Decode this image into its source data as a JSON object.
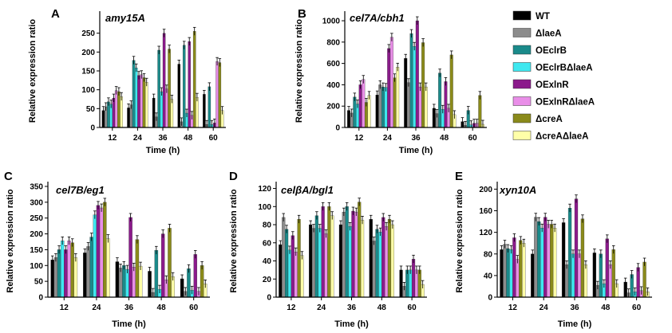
{
  "legend": {
    "entries": [
      {
        "label": "WT",
        "color": "#000000"
      },
      {
        "label": "ΔlaeA",
        "color": "#8c8c8c"
      },
      {
        "label": "OEclrB",
        "color": "#1a8a8a"
      },
      {
        "label": "OEclrBΔlaeA",
        "color": "#3ee8f0"
      },
      {
        "label": "OExlnR",
        "color": "#8b1a8b"
      },
      {
        "label": "OExlnRΔlaeA",
        "color": "#e98ee8"
      },
      {
        "label": "ΔcreA",
        "color": "#8a8a1a"
      },
      {
        "label": "ΔcreAΔlaeA",
        "color": "#ffffa8"
      }
    ]
  },
  "chart_data": [
    {
      "letter": "A",
      "type": "bar",
      "title": "amy15A",
      "xlabel": "Time (h)",
      "ylabel": "Relative expression ratio",
      "categories": [
        "12",
        "24",
        "36",
        "48",
        "60"
      ],
      "ylim": [
        0,
        300
      ],
      "yticks": [
        0,
        50,
        100,
        150,
        200,
        250
      ],
      "series": [
        {
          "name": "WT",
          "values": [
            45,
            52,
            78,
            168,
            88
          ]
        },
        {
          "name": "ΔlaeA",
          "values": [
            55,
            60,
            28,
            15,
            8
          ]
        },
        {
          "name": "OEclrB",
          "values": [
            68,
            178,
            205,
            218,
            108
          ]
        },
        {
          "name": "OEclrBΔlaeA",
          "values": [
            62,
            158,
            95,
            38,
            8
          ]
        },
        {
          "name": "OExlnR",
          "values": [
            78,
            138,
            250,
            228,
            12
          ]
        },
        {
          "name": "OExlnRΔlaeA",
          "values": [
            98,
            140,
            102,
            32,
            175
          ]
        },
        {
          "name": "ΔcreA",
          "values": [
            95,
            132,
            208,
            255,
            172
          ]
        },
        {
          "name": "ΔcreAΔlaeA",
          "values": [
            82,
            120,
            75,
            80,
            45
          ]
        }
      ]
    },
    {
      "letter": "B",
      "type": "bar",
      "title": "cel7A/cbh1",
      "xlabel": "Time (h)",
      "ylabel": "Relative expression ratio",
      "categories": [
        "12",
        "24",
        "36",
        "48",
        "60"
      ],
      "ylim": [
        0,
        1060
      ],
      "yticks": [
        0,
        200,
        400,
        600,
        800,
        1000
      ],
      "series": [
        {
          "name": "WT",
          "values": [
            160,
            305,
            648,
            180,
            55
          ]
        },
        {
          "name": "ΔlaeA",
          "values": [
            135,
            400,
            420,
            130,
            20
          ]
        },
        {
          "name": "OEclrB",
          "values": [
            285,
            380,
            880,
            510,
            160
          ]
        },
        {
          "name": "OEclrBΔlaeA",
          "values": [
            220,
            375,
            760,
            170,
            25
          ]
        },
        {
          "name": "OExlnR",
          "values": [
            400,
            740,
            1000,
            430,
            40
          ]
        },
        {
          "name": "OExlnRΔlaeA",
          "values": [
            450,
            845,
            380,
            180,
            40
          ]
        },
        {
          "name": "ΔcreA",
          "values": [
            235,
            465,
            795,
            680,
            300
          ]
        },
        {
          "name": "ΔcreAΔlaeA",
          "values": [
            300,
            565,
            380,
            120,
            30
          ]
        }
      ]
    },
    {
      "letter": "C",
      "type": "bar",
      "title": "cel7B/eg1",
      "xlabel": "Time (h)",
      "ylabel": "Relative expression ratio",
      "categories": [
        "12",
        "24",
        "36",
        "48",
        "60"
      ],
      "ylim": [
        0,
        355
      ],
      "yticks": [
        0,
        50,
        100,
        150,
        200,
        250,
        300,
        350
      ],
      "series": [
        {
          "name": "WT",
          "values": [
            118,
            140,
            112,
            82,
            58
          ]
        },
        {
          "name": "ΔlaeA",
          "values": [
            125,
            160,
            92,
            15,
            18
          ]
        },
        {
          "name": "OEclrB",
          "values": [
            150,
            190,
            100,
            148,
            90
          ]
        },
        {
          "name": "OEclrBΔlaeA",
          "values": [
            178,
            260,
            88,
            25,
            22
          ]
        },
        {
          "name": "OExlnR",
          "values": [
            150,
            290,
            252,
            200,
            135
          ]
        },
        {
          "name": "OExlnRΔlaeA",
          "values": [
            178,
            282,
            95,
            55,
            18
          ]
        },
        {
          "name": "ΔcreA",
          "values": [
            172,
            300,
            182,
            218,
            100
          ]
        },
        {
          "name": "ΔcreAΔlaeA",
          "values": [
            125,
            185,
            98,
            65,
            42
          ]
        }
      ]
    },
    {
      "letter": "D",
      "type": "bar",
      "title": "celβA/bgl1",
      "xlabel": "Time (h)",
      "ylabel": "Relative expression ratio",
      "categories": [
        "12",
        "24",
        "36",
        "48",
        "60"
      ],
      "ylim": [
        0,
        124
      ],
      "yticks": [
        0,
        20,
        40,
        60,
        80,
        100,
        120
      ],
      "series": [
        {
          "name": "WT",
          "values": [
            58,
            80,
            80,
            86,
            30
          ]
        },
        {
          "name": "ΔlaeA",
          "values": [
            88,
            76,
            94,
            62,
            12
          ]
        },
        {
          "name": "OEclrB",
          "values": [
            75,
            90,
            100,
            75,
            30
          ]
        },
        {
          "name": "OEclrBΔlaeA",
          "values": [
            52,
            76,
            78,
            72,
            30
          ]
        },
        {
          "name": "OExlnR",
          "values": [
            68,
            100,
            95,
            88,
            42
          ]
        },
        {
          "name": "OExlnRΔlaeA",
          "values": [
            50,
            70,
            94,
            78,
            30
          ]
        },
        {
          "name": "ΔcreA",
          "values": [
            86,
            100,
            105,
            86,
            30
          ]
        },
        {
          "name": "ΔcreAΔlaeA",
          "values": [
            46,
            90,
            85,
            80,
            14
          ]
        }
      ]
    },
    {
      "letter": "E",
      "type": "bar",
      "title": "xyn10A",
      "xlabel": "Time (h)",
      "ylabel": "Relative expression ratio",
      "categories": [
        "12",
        "24",
        "36",
        "48",
        "60"
      ],
      "ylim": [
        0,
        208
      ],
      "yticks": [
        0,
        40,
        80,
        120,
        160,
        200
      ],
      "series": [
        {
          "name": "WT",
          "values": [
            88,
            80,
            138,
            82,
            28
          ]
        },
        {
          "name": "ΔlaeA",
          "values": [
            98,
            148,
            60,
            22,
            8
          ]
        },
        {
          "name": "OEclrB",
          "values": [
            90,
            140,
            165,
            80,
            42
          ]
        },
        {
          "name": "OEclrBΔlaeA",
          "values": [
            88,
            128,
            80,
            25,
            10
          ]
        },
        {
          "name": "OExlnR",
          "values": [
            110,
            148,
            182,
            108,
            55
          ]
        },
        {
          "name": "OExlnRΔlaeA",
          "values": [
            70,
            135,
            80,
            60,
            12
          ]
        },
        {
          "name": "ΔcreA",
          "values": [
            105,
            135,
            145,
            88,
            65
          ]
        },
        {
          "name": "ΔcreAΔlaeA",
          "values": [
            100,
            128,
            60,
            25,
            10
          ]
        }
      ]
    }
  ]
}
